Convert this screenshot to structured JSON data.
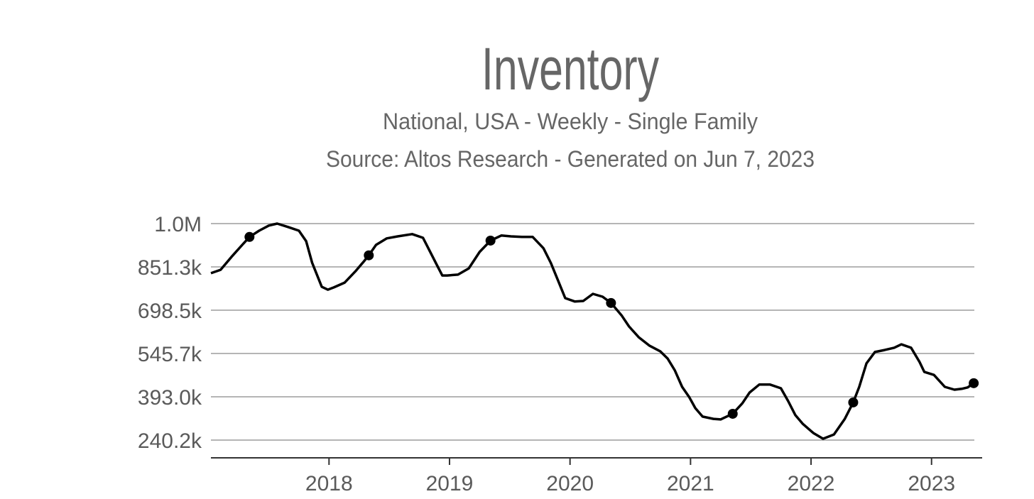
{
  "chart_data": {
    "type": "line",
    "title": "Inventory",
    "subtitle": "National, USA - Weekly - Single Family",
    "source": "Source: Altos Research - Generated on Jun 7, 2023",
    "x": [
      2017.02,
      2017.1,
      2017.19,
      2017.28,
      2017.34,
      2017.42,
      2017.5,
      2017.57,
      2017.66,
      2017.75,
      2017.81,
      2017.86,
      2017.94,
      2017.99,
      2018.04,
      2018.13,
      2018.22,
      2018.29,
      2018.33,
      2018.39,
      2018.48,
      2018.57,
      2018.69,
      2018.78,
      2018.84,
      2018.9,
      2018.94,
      2018.98,
      2019.07,
      2019.16,
      2019.25,
      2019.34,
      2019.43,
      2019.51,
      2019.6,
      2019.69,
      2019.78,
      2019.84,
      2019.9,
      2019.96,
      2020.04,
      2020.11,
      2020.19,
      2020.27,
      2020.34,
      2020.43,
      2020.49,
      2020.57,
      2020.66,
      2020.75,
      2020.81,
      2020.87,
      2020.93,
      2020.99,
      2021.04,
      2021.1,
      2021.19,
      2021.25,
      2021.35,
      2021.43,
      2021.49,
      2021.57,
      2021.66,
      2021.75,
      2021.81,
      2021.87,
      2021.93,
      2022.02,
      2022.1,
      2022.19,
      2022.28,
      2022.35,
      2022.4,
      2022.46,
      2022.53,
      2022.61,
      2022.69,
      2022.75,
      2022.83,
      2022.9,
      2022.94,
      2023.02,
      2023.11,
      2023.19,
      2023.25,
      2023.3,
      2023.35
    ],
    "series": [
      {
        "color": "#000000",
        "values": [
          829000,
          841000,
          886000,
          929000,
          957000,
          979000,
          997000,
          1004000,
          992000,
          979000,
          942000,
          866000,
          781000,
          771000,
          779000,
          796000,
          836000,
          871000,
          892000,
          929000,
          952000,
          959000,
          967000,
          954000,
          904000,
          854000,
          821000,
          821000,
          824000,
          846000,
          904000,
          944000,
          962000,
          959000,
          957000,
          957000,
          917000,
          866000,
          804000,
          741000,
          729000,
          731000,
          756000,
          746000,
          724000,
          679000,
          641000,
          603000,
          573000,
          553000,
          528000,
          486000,
          428000,
          391000,
          353000,
          323000,
          315000,
          313000,
          333000,
          370000,
          408000,
          436000,
          436000,
          423000,
          378000,
          328000,
          298000,
          265000,
          245000,
          260000,
          315000,
          373000,
          428000,
          511000,
          551000,
          558000,
          566000,
          578000,
          566000,
          516000,
          481000,
          470000,
          428000,
          418000,
          421000,
          426000,
          441000
        ]
      }
    ],
    "xlim": [
      2017.02,
      2023.42
    ],
    "xticks": [
      2018,
      2019,
      2020,
      2021,
      2022,
      2023
    ],
    "ylim": [
      177600,
      1041600
    ],
    "yticks": [
      {
        "value": 1004000,
        "label": "1.0M"
      },
      {
        "value": 851300,
        "label": "851.3k"
      },
      {
        "value": 698500,
        "label": "698.5k"
      },
      {
        "value": 545700,
        "label": "545.7k"
      },
      {
        "value": 393000,
        "label": "393.0k"
      },
      {
        "value": 240200,
        "label": "240.2k"
      }
    ],
    "grid": true
  }
}
